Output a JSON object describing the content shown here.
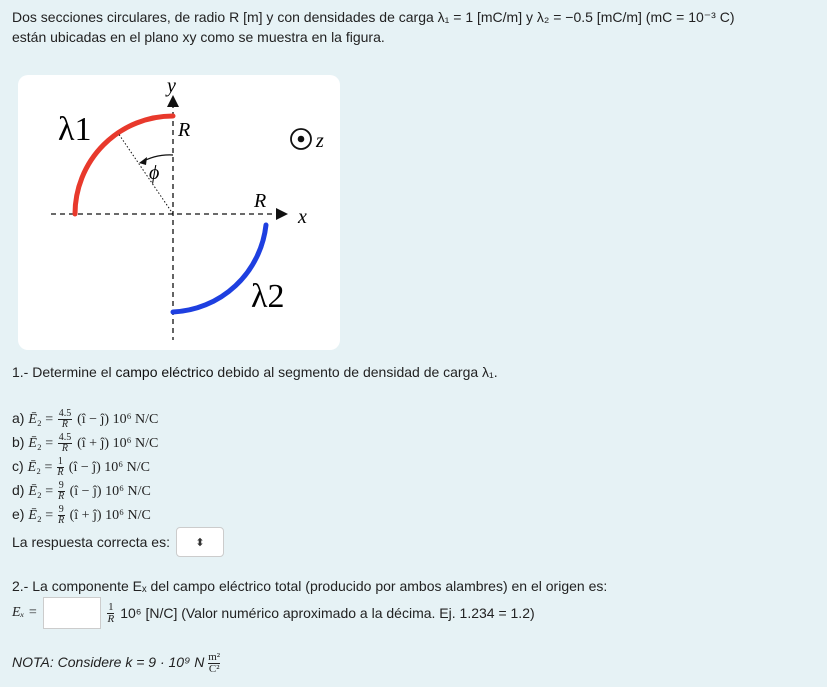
{
  "intro": {
    "line1": "Dos secciones circulares, de radio R [m] y con densidades de carga λ₁ = 1 [mC/m] y λ₂ = −0.5 [mC/m] (mC = 10⁻³ C)",
    "line2": "están ubicadas en el plano xy como se muestra en la figura."
  },
  "figure": {
    "label_y": "y",
    "label_x": "x",
    "label_z": "z",
    "label_R_top": "R",
    "label_R_right": "R",
    "label_lambda1": "λ1",
    "label_lambda2": "λ2",
    "label_phi": "ϕ",
    "colors": {
      "arc1": "#e8392c",
      "arc2": "#1e3fe0"
    }
  },
  "question1": {
    "prefix": "1.- Determine el ",
    "highlight": "campo eléctrico",
    "suffix": " debido al segmento de densidad de carga λ₁."
  },
  "options": [
    {
      "label": "a)",
      "num": "4.5",
      "den": "R",
      "vec": "(î − ĵ) 10⁶ N/C"
    },
    {
      "label": "b)",
      "num": "4.5",
      "den": "R",
      "vec": "(î + ĵ) 10⁶ N/C"
    },
    {
      "label": "c)",
      "num": "1",
      "den": "R",
      "vec": "(î − ĵ) 10⁶ N/C"
    },
    {
      "label": "d)",
      "num": "9",
      "den": "R",
      "vec": "(î − ĵ) 10⁶ N/C"
    },
    {
      "label": "e)",
      "num": "9",
      "den": "R",
      "vec": "(î + ĵ) 10⁶ N/C"
    }
  ],
  "answer": {
    "label": "La respuesta correcta es:",
    "select_icon": "⬍"
  },
  "question2": {
    "text": "2.- La componente Eₓ del campo eléctrico total (producido por ambos alambres) en el origen es:",
    "ex_label": "Eₓ =",
    "frac_num": "1",
    "frac_den": "R",
    "units": "10⁶ [N/C] (Valor numérico aproximado a la décima. Ej. 1.234 = 1.2)"
  },
  "nota": {
    "prefix": "NOTA: Considere k = 9 · 10⁹ N",
    "unit_num": "m²",
    "unit_den": "C²"
  }
}
